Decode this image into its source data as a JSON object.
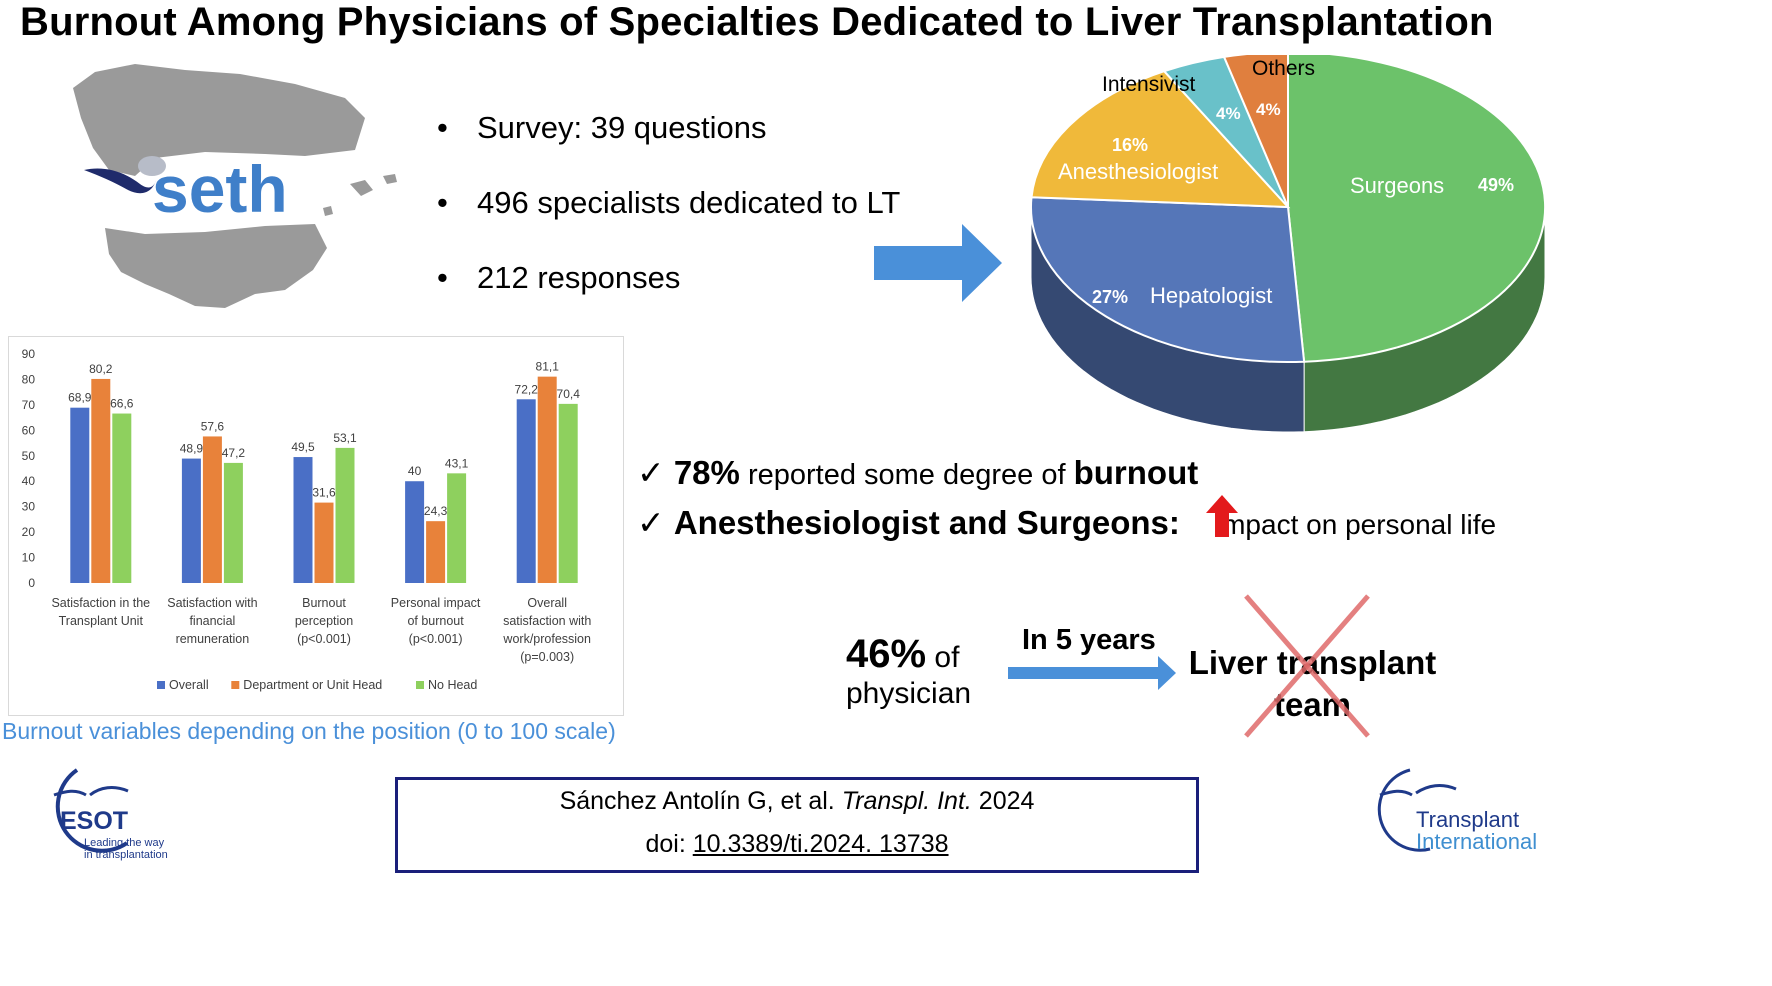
{
  "title": "Burnout Among Physicians of Specialties Dedicated to Liver Transplantation",
  "seth_logo_text": "seth",
  "bullets": [
    "Survey: 39 questions",
    "496 specialists dedicated to LT",
    "212 responses"
  ],
  "bullet_glyph": "•",
  "pie": {
    "slices": [
      {
        "label": "Surgeons",
        "pct": 49,
        "pct_label": "49%",
        "color": "#6cc26a"
      },
      {
        "label": "Hepatologist",
        "pct": 27,
        "pct_label": "27%",
        "color": "#5576b8"
      },
      {
        "label": "Anesthesiologist",
        "pct": 16,
        "pct_label": "16%",
        "color": "#f0b93a"
      },
      {
        "label": "Intensivist",
        "pct": 4,
        "pct_label": "4%",
        "color": "#69c1c9"
      },
      {
        "label": "Others",
        "pct": 4,
        "pct_label": "4%",
        "color": "#e07f3e"
      }
    ]
  },
  "chart_data": {
    "type": "bar",
    "categories": [
      [
        "Satisfaction in the",
        "Transplant Unit"
      ],
      [
        "Satisfaction with",
        "financial",
        "remuneration"
      ],
      [
        "Burnout",
        "perception",
        "(p<0.001)"
      ],
      [
        "Personal impact",
        "of burnout",
        "(p<0.001)"
      ],
      [
        "Overall",
        "satisfaction with",
        "work/profession",
        "(p=0.003)"
      ]
    ],
    "series": [
      {
        "name": "Overall",
        "color": "#4a6fc6",
        "values": [
          68.9,
          48.9,
          49.5,
          40,
          72.2
        ],
        "labels": [
          "68,9",
          "48,9",
          "49,5",
          "40",
          "72,2"
        ]
      },
      {
        "name": "Department or Unit Head",
        "color": "#e8823a",
        "values": [
          80.2,
          57.6,
          31.6,
          24.3,
          81.1
        ],
        "labels": [
          "80,2",
          "57,6",
          "31,6",
          "24,3",
          "81,1"
        ]
      },
      {
        "name": "No Head",
        "color": "#8ed05e",
        "values": [
          66.6,
          47.2,
          53.1,
          43.1,
          70.4
        ],
        "labels": [
          "66,6",
          "47,2",
          "53,1",
          "43,1",
          "70,4"
        ]
      }
    ],
    "ylim": [
      0,
      90
    ],
    "yticks": [
      "0",
      "10",
      "20",
      "30",
      "40",
      "50",
      "60",
      "70",
      "80",
      "90"
    ],
    "legend_position": "bottom",
    "grid": false
  },
  "chart_caption": "Burnout variables depending on the position (0 to 100 scale)",
  "findings": {
    "check_glyph": "✓",
    "f1_pct": "78%",
    "f1_text": " reported some degree of ",
    "f1_bold": "burnout",
    "f2_bold": "Anesthesiologist and Surgeons:",
    "f2_text": "impact on personal life"
  },
  "intent": {
    "pct": "46%",
    "of": " of",
    "physician": "physician",
    "in_years": "In 5 years",
    "team_line1": "Liver transplant",
    "team_line2": "team"
  },
  "citation": {
    "authors": "Sánchez Antolín G, et al. ",
    "journal": "Transpl. Int.",
    "year": " 2024",
    "doi_prefix": "doi: ",
    "doi": "10.3389/ti.2024. 13738"
  },
  "esot": {
    "name": "ESOT",
    "tagline1": "Leading the way",
    "tagline2": "in transplantation"
  },
  "ti_logo": {
    "line1": "Transplant",
    "line2": "International"
  }
}
